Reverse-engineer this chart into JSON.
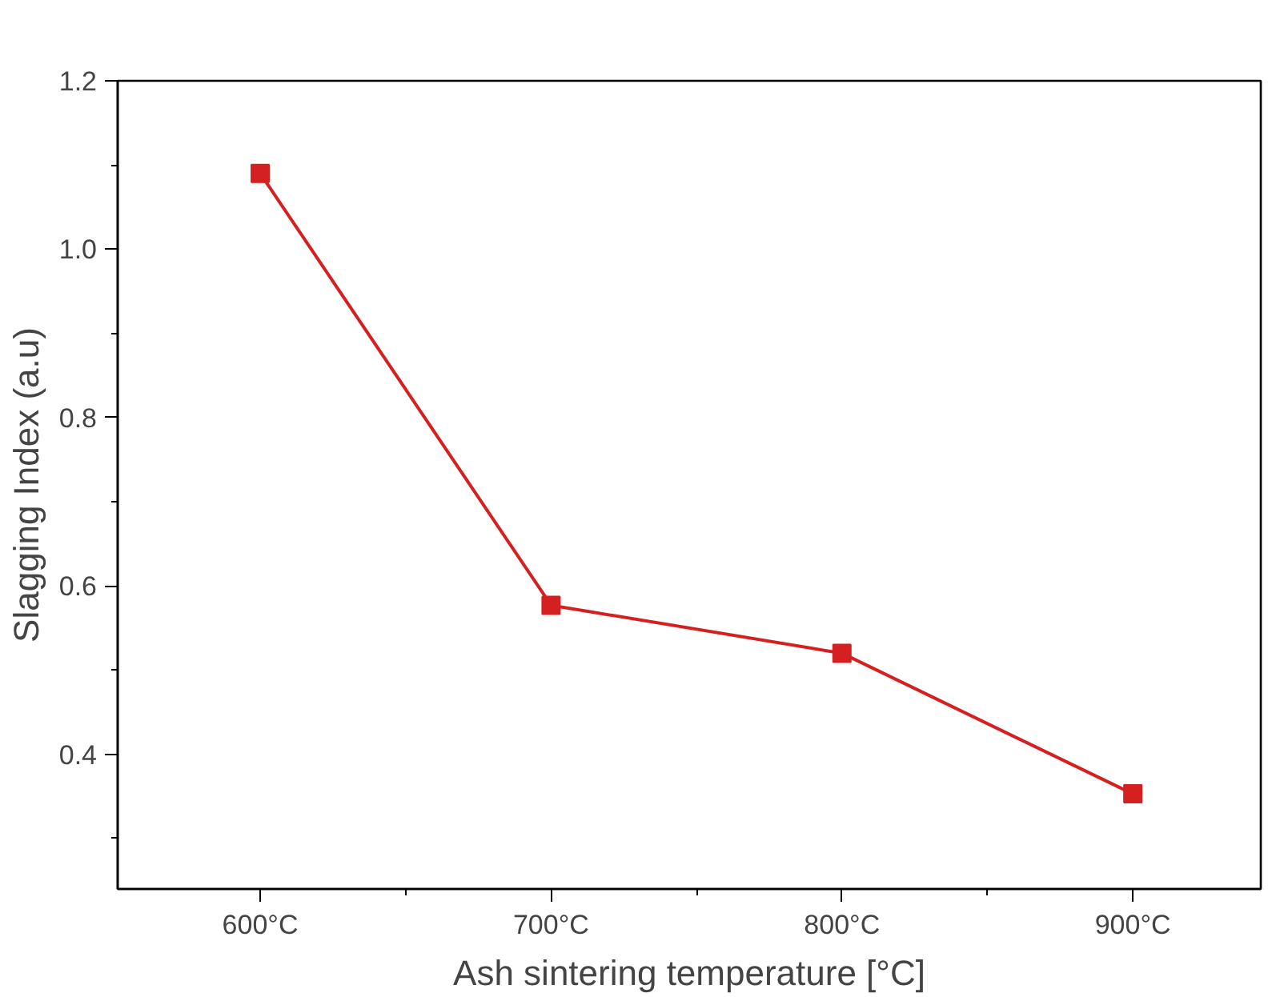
{
  "chart_data": {
    "type": "line",
    "xlabel": "Ash sintering temperature [°C]",
    "ylabel": "Slagging Index (a.u)",
    "x": [
      600,
      700,
      800,
      900
    ],
    "series": [
      {
        "color": "#d42020",
        "values": [
          1.09,
          0.577,
          0.52,
          0.353
        ]
      }
    ],
    "xlim": [
      551,
      944
    ],
    "xticks": [
      {
        "value": 600,
        "label": "600°C"
      },
      {
        "value": 700,
        "label": "700°C"
      },
      {
        "value": 800,
        "label": "800°C"
      },
      {
        "value": 900,
        "label": "900°C"
      }
    ],
    "ylim": [
      0.24,
      1.2
    ],
    "yticks": [
      {
        "value": 0.4,
        "label": "0.4"
      },
      {
        "value": 0.6,
        "label": "0.6"
      },
      {
        "value": 0.8,
        "label": "0.8"
      },
      {
        "value": 1.0,
        "label": "1.0"
      },
      {
        "value": 1.2,
        "label": "1.2"
      }
    ],
    "grid": false,
    "marker": "square",
    "line_style": "solid"
  }
}
